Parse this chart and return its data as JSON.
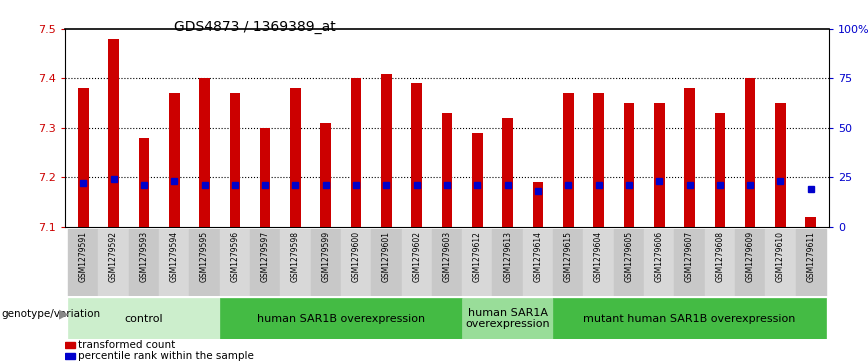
{
  "title": "GDS4873 / 1369389_at",
  "samples": [
    "GSM1279591",
    "GSM1279592",
    "GSM1279593",
    "GSM1279594",
    "GSM1279595",
    "GSM1279596",
    "GSM1279597",
    "GSM1279598",
    "GSM1279599",
    "GSM1279600",
    "GSM1279601",
    "GSM1279602",
    "GSM1279603",
    "GSM1279612",
    "GSM1279613",
    "GSM1279614",
    "GSM1279615",
    "GSM1279604",
    "GSM1279605",
    "GSM1279606",
    "GSM1279607",
    "GSM1279608",
    "GSM1279609",
    "GSM1279610",
    "GSM1279611"
  ],
  "transformed_count": [
    7.38,
    7.48,
    7.28,
    7.37,
    7.4,
    7.37,
    7.3,
    7.38,
    7.31,
    7.4,
    7.41,
    7.39,
    7.33,
    7.29,
    7.32,
    7.19,
    7.37,
    7.37,
    7.35,
    7.35,
    7.38,
    7.33,
    7.4,
    7.35,
    7.12
  ],
  "percentile_rank_values": [
    22,
    24,
    21,
    23,
    21,
    21,
    21,
    21,
    21,
    21,
    21,
    21,
    21,
    21,
    21,
    18,
    21,
    21,
    21,
    23,
    21,
    21,
    21,
    23,
    19
  ],
  "ylim_left": [
    7.1,
    7.5
  ],
  "ylim_right": [
    0,
    100
  ],
  "y_right_ticks": [
    0,
    25,
    50,
    75,
    100
  ],
  "y_right_labels": [
    "0",
    "25",
    "50",
    "75",
    "100%"
  ],
  "bar_color": "#CC0000",
  "dot_color": "#0000CC",
  "baseline": 7.1,
  "groups": [
    {
      "label": "control",
      "start": 0,
      "end": 5,
      "color": "#CCEECC"
    },
    {
      "label": "human SAR1B overexpression",
      "start": 5,
      "end": 13,
      "color": "#44BB44"
    },
    {
      "label": "human SAR1A\noverexpression",
      "start": 13,
      "end": 16,
      "color": "#99DD99"
    },
    {
      "label": "mutant human SAR1B overexpression",
      "start": 16,
      "end": 25,
      "color": "#44BB44"
    }
  ],
  "genotype_label": "genotype/variation",
  "legend_items": [
    {
      "label": "transformed count",
      "color": "#CC0000"
    },
    {
      "label": "percentile rank within the sample",
      "color": "#0000CC"
    }
  ],
  "dotted_lines": [
    7.2,
    7.3,
    7.4
  ],
  "bar_width": 0.35,
  "title_fontsize": 10,
  "tick_label_fontsize": 5.5,
  "group_label_fontsize": 8,
  "legend_fontsize": 7.5
}
